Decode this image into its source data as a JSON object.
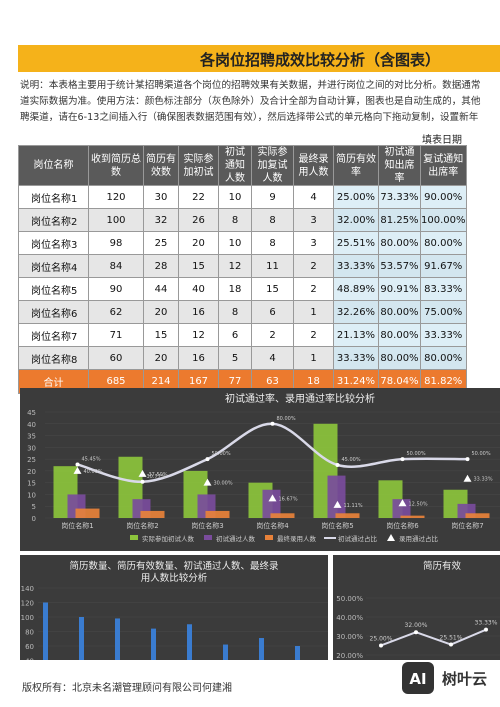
{
  "header": {
    "title": "各岗位招聘成效比较分析（含图表）",
    "description": [
      "说明：本表格主要用于统计某招聘渠道各个岗位的招聘效果有关数据，并进行岗位之间的对比分析。数据通常",
      "道实际数据为准。使用方法：颜色标注部分（灰色除外）及合计全部为自动计算，图表也是自动生成的，其他",
      "聘渠道，请在6-13之间插入行（确保图表数据范围有效），然后选择带公式的单元格向下拖动复制，设置新年"
    ],
    "date_label": "填表日期"
  },
  "table": {
    "columns": [
      "岗位名称",
      "收到简历总数",
      "简历有效数",
      "实际参加初试",
      "初试通知人数",
      "实际参加复试人数",
      "最终录用人数",
      "简历有效率",
      "初试通知出席率",
      "复试通知出席率"
    ],
    "rows": [
      [
        "岗位名称1",
        "120",
        "30",
        "22",
        "10",
        "9",
        "4",
        "25.00%",
        "73.33%",
        "90.00%"
      ],
      [
        "岗位名称2",
        "100",
        "32",
        "26",
        "8",
        "8",
        "3",
        "32.00%",
        "81.25%",
        "100.00%"
      ],
      [
        "岗位名称3",
        "98",
        "25",
        "20",
        "10",
        "8",
        "3",
        "25.51%",
        "80.00%",
        "80.00%"
      ],
      [
        "岗位名称4",
        "84",
        "28",
        "15",
        "12",
        "11",
        "2",
        "33.33%",
        "53.57%",
        "91.67%"
      ],
      [
        "岗位名称5",
        "90",
        "44",
        "40",
        "18",
        "15",
        "2",
        "48.89%",
        "90.91%",
        "83.33%"
      ],
      [
        "岗位名称6",
        "62",
        "20",
        "16",
        "8",
        "6",
        "1",
        "32.26%",
        "80.00%",
        "75.00%"
      ],
      [
        "岗位名称7",
        "71",
        "15",
        "12",
        "6",
        "2",
        "2",
        "21.13%",
        "80.00%",
        "33.33%"
      ],
      [
        "岗位名称8",
        "60",
        "20",
        "16",
        "5",
        "4",
        "1",
        "33.33%",
        "80.00%",
        "80.00%"
      ]
    ],
    "total": [
      "合计",
      "685",
      "214",
      "167",
      "77",
      "63",
      "18",
      "31.24%",
      "78.04%",
      "81.82%"
    ]
  },
  "chart1": {
    "type": "combo",
    "title": "初试通过率、录用通过率比较分析",
    "categories": [
      "岗位名称1",
      "岗位名称2",
      "岗位名称3",
      "岗位名称4",
      "岗位名称5",
      "岗位名称6",
      "岗位名称7"
    ],
    "ylim": [
      0,
      45
    ],
    "yticks": [
      0,
      5,
      10,
      15,
      20,
      25,
      30,
      35,
      40,
      45
    ],
    "y2lim": [
      0,
      90
    ],
    "series": [
      {
        "name": "实际参加初试人数",
        "type": "bar",
        "color": "#8cc43c",
        "values": [
          22,
          26,
          20,
          15,
          40,
          16,
          12
        ]
      },
      {
        "name": "初试通过人数",
        "type": "bar",
        "color": "#7a4c9c",
        "values": [
          10,
          8,
          10,
          12,
          18,
          8,
          6
        ]
      },
      {
        "name": "最终录用人数",
        "type": "bar",
        "color": "#e8823a",
        "values": [
          4,
          3,
          3,
          2,
          2,
          1,
          2
        ]
      },
      {
        "name": "初试通过占比",
        "type": "line",
        "axis": "y2",
        "color": "#d9d9e8",
        "values": [
          45.45,
          30.77,
          50,
          80,
          45,
          50,
          50
        ],
        "value_labels": [
          "45.45%",
          "30.77%",
          "50.00%",
          "80.00%",
          "45.00%",
          "50.00%",
          "50.00%"
        ]
      },
      {
        "name": "录用通过占比",
        "type": "marker",
        "axis": "y2",
        "color": "#ffffff",
        "values": [
          40,
          37.5,
          30,
          16.67,
          11.11,
          12.5,
          33.33
        ],
        "value_labels": [
          "40.00%",
          "37.50%",
          "30.00%",
          "16.67%",
          "11.11%",
          "12.50%",
          "33.33%"
        ]
      }
    ]
  },
  "chart2": {
    "type": "bar",
    "title": "简历数量、简历有效数量、初试通过人数、最终录用人数比较分析",
    "ylim": [
      0,
      140
    ],
    "yticks": [
      40,
      60,
      80,
      100,
      120,
      140
    ],
    "series": [
      {
        "color": "#3a7cd0",
        "values": [
          120,
          100,
          98,
          84,
          90,
          62,
          71,
          60
        ]
      }
    ]
  },
  "chart3": {
    "type": "line",
    "title": "简历有效",
    "ylim": [
      0,
      50
    ],
    "yticks": [
      {
        "value": 20,
        "label": "20.00%"
      },
      {
        "value": 30,
        "label": "30.00%"
      },
      {
        "value": 40,
        "label": "40.00%"
      },
      {
        "value": 50,
        "label": "50.00%"
      }
    ],
    "color": "#d9d9e8",
    "values": [
      25,
      32,
      25.51,
      33.33
    ],
    "value_labels": [
      "25.00%",
      "32.00%",
      "25.51%",
      "33.33%"
    ]
  },
  "footer": "版权所有：北京未名潮管理顾问有限公司何建湘",
  "watermark": {
    "icon": "AI",
    "text": "树叶云"
  }
}
